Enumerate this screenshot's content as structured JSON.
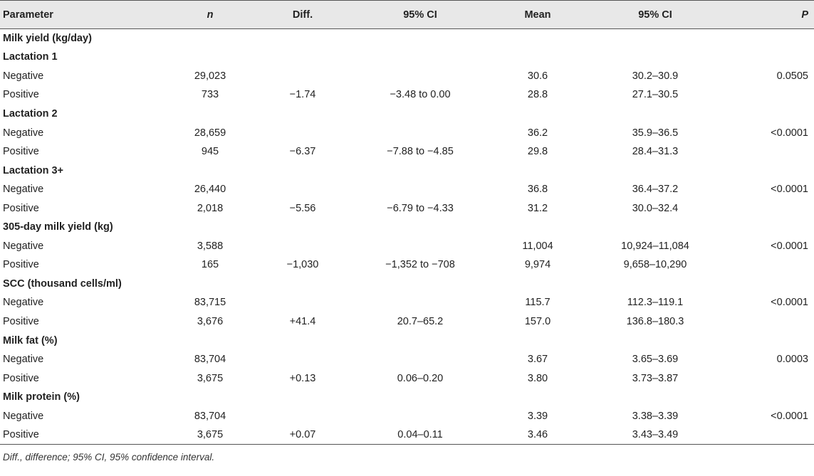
{
  "header": {
    "parameter": "Parameter",
    "n": "n",
    "diff": "Diff.",
    "ci1": "95% CI",
    "mean": "Mean",
    "ci2": "95% CI",
    "p": "P"
  },
  "rows": [
    {
      "type": "section",
      "label": "Milk yield (kg/day)"
    },
    {
      "type": "section",
      "label": "Lactation 1"
    },
    {
      "type": "data",
      "label": "Negative",
      "n": "29,023",
      "diff": "",
      "ci1": "",
      "mean": "30.6",
      "ci2": "30.2–30.9",
      "p": "0.0505"
    },
    {
      "type": "data",
      "label": "Positive",
      "n": "733",
      "diff": "−1.74",
      "ci1": "−3.48 to 0.00",
      "mean": "28.8",
      "ci2": "27.1–30.5",
      "p": ""
    },
    {
      "type": "section",
      "label": "Lactation 2"
    },
    {
      "type": "data",
      "label": "Negative",
      "n": "28,659",
      "diff": "",
      "ci1": "",
      "mean": "36.2",
      "ci2": "35.9–36.5",
      "p": "<0.0001"
    },
    {
      "type": "data",
      "label": "Positive",
      "n": "945",
      "diff": "−6.37",
      "ci1": "−7.88 to −4.85",
      "mean": "29.8",
      "ci2": "28.4–31.3",
      "p": ""
    },
    {
      "type": "section",
      "label": "Lactation 3+"
    },
    {
      "type": "data",
      "label": "Negative",
      "n": "26,440",
      "diff": "",
      "ci1": "",
      "mean": "36.8",
      "ci2": "36.4–37.2",
      "p": "<0.0001"
    },
    {
      "type": "data",
      "label": "Positive",
      "n": "2,018",
      "diff": "−5.56",
      "ci1": "−6.79 to −4.33",
      "mean": "31.2",
      "ci2": "30.0–32.4",
      "p": ""
    },
    {
      "type": "section",
      "label": "305-day milk yield (kg)"
    },
    {
      "type": "data",
      "label": "Negative",
      "n": "3,588",
      "diff": "",
      "ci1": "",
      "mean": "11,004",
      "ci2": "10,924–11,084",
      "p": "<0.0001"
    },
    {
      "type": "data",
      "label": "Positive",
      "n": "165",
      "diff": "−1,030",
      "ci1": "−1,352 to −708",
      "mean": "9,974",
      "ci2": "9,658–10,290",
      "p": ""
    },
    {
      "type": "section",
      "label": "SCC (thousand cells/ml)"
    },
    {
      "type": "data",
      "label": "Negative",
      "n": "83,715",
      "diff": "",
      "ci1": "",
      "mean": "115.7",
      "ci2": "112.3–119.1",
      "p": "<0.0001"
    },
    {
      "type": "data",
      "label": "Positive",
      "n": "3,676",
      "diff": "+41.4",
      "ci1": "20.7–65.2",
      "mean": "157.0",
      "ci2": "136.8–180.3",
      "p": ""
    },
    {
      "type": "section",
      "label": "Milk fat (%)"
    },
    {
      "type": "data",
      "label": "Negative",
      "n": "83,704",
      "diff": "",
      "ci1": "",
      "mean": "3.67",
      "ci2": "3.65–3.69",
      "p": "0.0003"
    },
    {
      "type": "data",
      "label": "Positive",
      "n": "3,675",
      "diff": "+0.13",
      "ci1": "0.06–0.20",
      "mean": "3.80",
      "ci2": "3.73–3.87",
      "p": ""
    },
    {
      "type": "section",
      "label": "Milk protein (%)"
    },
    {
      "type": "data",
      "label": "Negative",
      "n": "83,704",
      "diff": "",
      "ci1": "",
      "mean": "3.39",
      "ci2": "3.38–3.39",
      "p": "<0.0001"
    },
    {
      "type": "data",
      "label": "Positive",
      "n": "3,675",
      "diff": "+0.07",
      "ci1": "0.04–0.11",
      "mean": "3.46",
      "ci2": "3.43–3.49",
      "p": ""
    }
  ],
  "footnote": "Diff., difference; 95% CI, 95% confidence interval."
}
